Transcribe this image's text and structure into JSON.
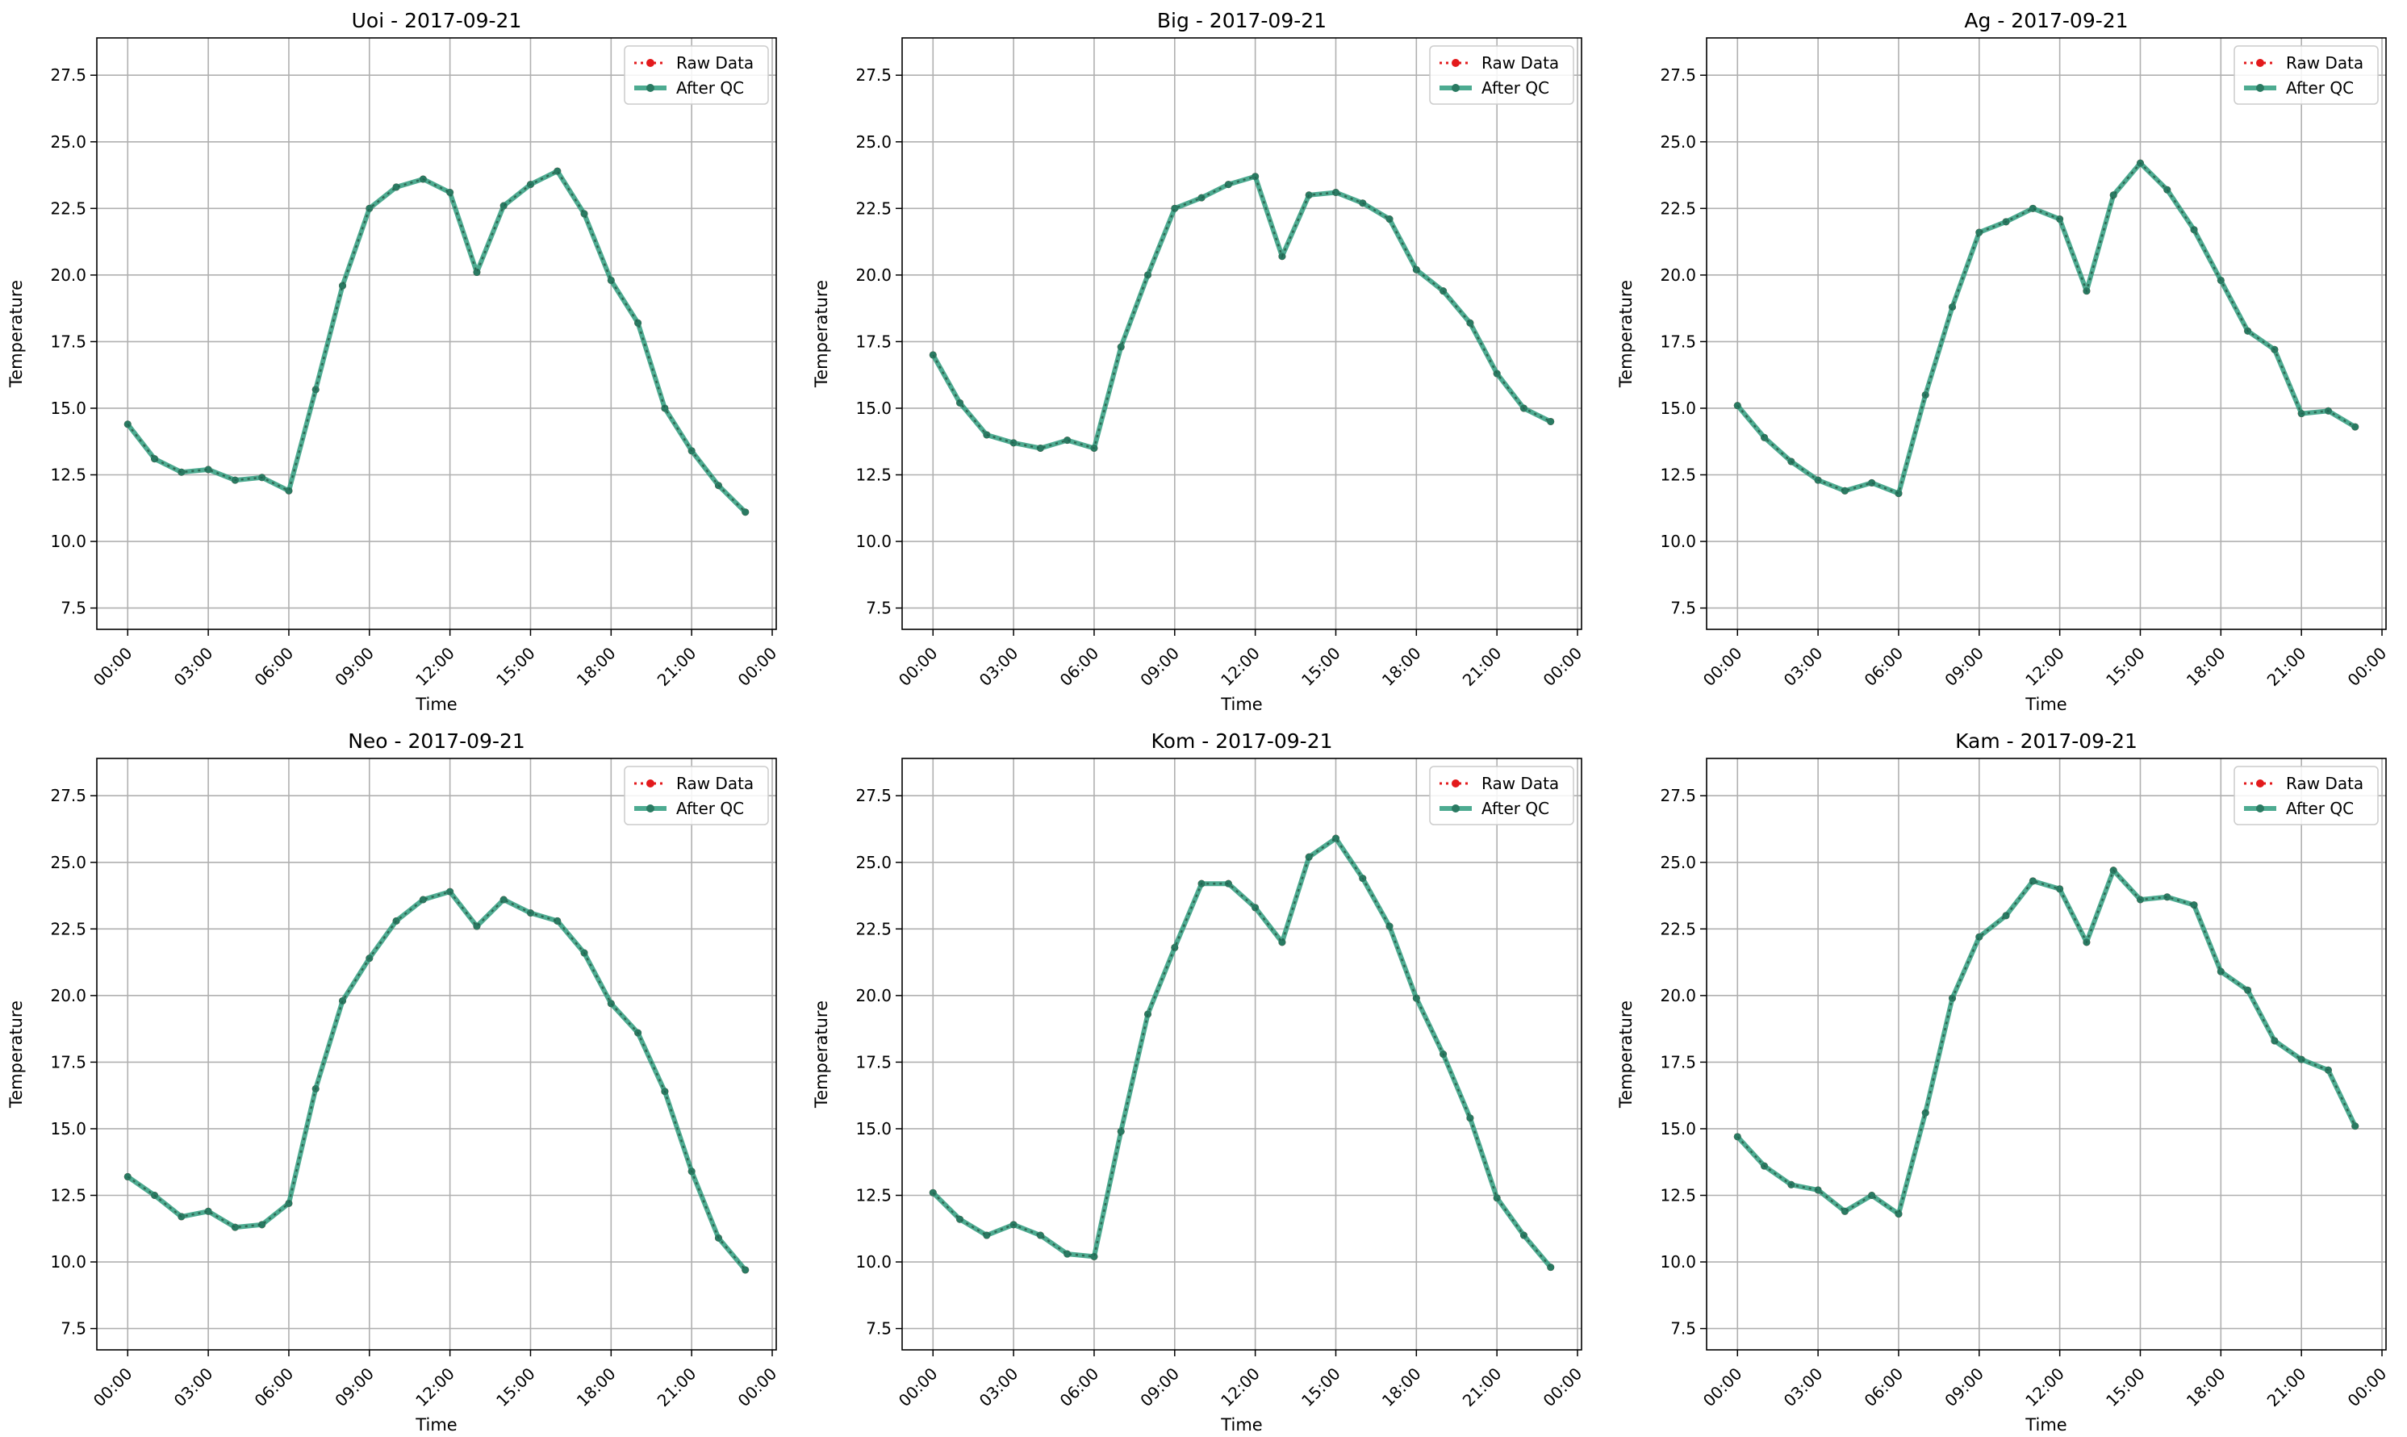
{
  "chart_data": [
    {
      "type": "line",
      "title": "Uoi - 2017-09-21",
      "xlabel": "Time",
      "ylabel": "Temperature",
      "x_ticks": [
        "00:00",
        "03:00",
        "06:00",
        "09:00",
        "12:00",
        "15:00",
        "18:00",
        "21:00",
        "00:00"
      ],
      "y_ticks": [
        "7.5",
        "10.0",
        "12.5",
        "15.0",
        "17.5",
        "20.0",
        "22.5",
        "25.0",
        "27.5"
      ],
      "xlim": [
        -1.15,
        24.15
      ],
      "ylim": [
        6.7,
        28.9
      ],
      "grid": true,
      "legend": "top-right",
      "x_hours": [
        0,
        1,
        2,
        3,
        4,
        5,
        6,
        7,
        8,
        9,
        10,
        11,
        12,
        13,
        14,
        15,
        16,
        17,
        18,
        19,
        20,
        21,
        22,
        23
      ],
      "series": [
        {
          "name": "Raw Data",
          "color": "#e31a1c",
          "style": "dotted-markers",
          "values": [
            14.4,
            13.1,
            12.6,
            12.7,
            12.3,
            12.4,
            11.9,
            15.7,
            19.6,
            22.5,
            23.3,
            23.6,
            23.1,
            20.1,
            22.6,
            23.4,
            23.9,
            22.3,
            19.8,
            18.2,
            15.0,
            13.4,
            12.1,
            11.1
          ]
        },
        {
          "name": "After QC",
          "color": "#2e9c7e",
          "style": "solid-markers",
          "values": [
            14.4,
            13.1,
            12.6,
            12.7,
            12.3,
            12.4,
            11.9,
            15.7,
            19.6,
            22.5,
            23.3,
            23.6,
            23.1,
            20.1,
            22.6,
            23.4,
            23.9,
            22.3,
            19.8,
            18.2,
            15.0,
            13.4,
            12.1,
            11.1
          ]
        }
      ]
    },
    {
      "type": "line",
      "title": "Big - 2017-09-21",
      "xlabel": "Time",
      "ylabel": "Temperature",
      "x_ticks": [
        "00:00",
        "03:00",
        "06:00",
        "09:00",
        "12:00",
        "15:00",
        "18:00",
        "21:00",
        "00:00"
      ],
      "y_ticks": [
        "7.5",
        "10.0",
        "12.5",
        "15.0",
        "17.5",
        "20.0",
        "22.5",
        "25.0",
        "27.5"
      ],
      "xlim": [
        -1.15,
        24.15
      ],
      "ylim": [
        6.7,
        28.9
      ],
      "grid": true,
      "legend": "top-right",
      "x_hours": [
        0,
        1,
        2,
        3,
        4,
        5,
        6,
        7,
        8,
        9,
        10,
        11,
        12,
        13,
        14,
        15,
        16,
        17,
        18,
        19,
        20,
        21,
        22,
        23
      ],
      "series": [
        {
          "name": "Raw Data",
          "color": "#e31a1c",
          "style": "dotted-markers",
          "values": [
            17.0,
            15.2,
            14.0,
            13.7,
            13.5,
            13.8,
            13.5,
            17.3,
            20.0,
            22.5,
            22.9,
            23.4,
            23.7,
            20.7,
            23.0,
            23.1,
            22.7,
            22.1,
            20.2,
            19.4,
            18.2,
            16.3,
            15.0,
            14.5
          ]
        },
        {
          "name": "After QC",
          "color": "#2e9c7e",
          "style": "solid-markers",
          "values": [
            17.0,
            15.2,
            14.0,
            13.7,
            13.5,
            13.8,
            13.5,
            17.3,
            20.0,
            22.5,
            22.9,
            23.4,
            23.7,
            20.7,
            23.0,
            23.1,
            22.7,
            22.1,
            20.2,
            19.4,
            18.2,
            16.3,
            15.0,
            14.5
          ]
        }
      ]
    },
    {
      "type": "line",
      "title": "Ag - 2017-09-21",
      "xlabel": "Time",
      "ylabel": "Temperature",
      "x_ticks": [
        "00:00",
        "03:00",
        "06:00",
        "09:00",
        "12:00",
        "15:00",
        "18:00",
        "21:00",
        "00:00"
      ],
      "y_ticks": [
        "7.5",
        "10.0",
        "12.5",
        "15.0",
        "17.5",
        "20.0",
        "22.5",
        "25.0",
        "27.5"
      ],
      "xlim": [
        -1.15,
        24.15
      ],
      "ylim": [
        6.7,
        28.9
      ],
      "grid": true,
      "legend": "top-right",
      "x_hours": [
        0,
        1,
        2,
        3,
        4,
        5,
        6,
        7,
        8,
        9,
        10,
        11,
        12,
        13,
        14,
        15,
        16,
        17,
        18,
        19,
        20,
        21,
        22,
        23
      ],
      "series": [
        {
          "name": "Raw Data",
          "color": "#e31a1c",
          "style": "dotted-markers",
          "values": [
            15.1,
            13.9,
            13.0,
            12.3,
            11.9,
            12.2,
            11.8,
            15.5,
            18.8,
            21.6,
            22.0,
            22.5,
            22.1,
            19.4,
            23.0,
            24.2,
            23.2,
            21.7,
            19.8,
            17.9,
            17.2,
            14.8,
            14.9,
            14.3
          ]
        },
        {
          "name": "After QC",
          "color": "#2e9c7e",
          "style": "solid-markers",
          "values": [
            15.1,
            13.9,
            13.0,
            12.3,
            11.9,
            12.2,
            11.8,
            15.5,
            18.8,
            21.6,
            22.0,
            22.5,
            22.1,
            19.4,
            23.0,
            24.2,
            23.2,
            21.7,
            19.8,
            17.9,
            17.2,
            14.8,
            14.9,
            14.3
          ]
        }
      ]
    },
    {
      "type": "line",
      "title": "Neo - 2017-09-21",
      "xlabel": "Time",
      "ylabel": "Temperature",
      "x_ticks": [
        "00:00",
        "03:00",
        "06:00",
        "09:00",
        "12:00",
        "15:00",
        "18:00",
        "21:00",
        "00:00"
      ],
      "y_ticks": [
        "7.5",
        "10.0",
        "12.5",
        "15.0",
        "17.5",
        "20.0",
        "22.5",
        "25.0",
        "27.5"
      ],
      "xlim": [
        -1.15,
        24.15
      ],
      "ylim": [
        6.7,
        28.9
      ],
      "grid": true,
      "legend": "top-right",
      "x_hours": [
        0,
        1,
        2,
        3,
        4,
        5,
        6,
        7,
        8,
        9,
        10,
        11,
        12,
        13,
        14,
        15,
        16,
        17,
        18,
        19,
        20,
        21,
        22,
        23
      ],
      "series": [
        {
          "name": "Raw Data",
          "color": "#e31a1c",
          "style": "dotted-markers",
          "values": [
            13.2,
            12.5,
            11.7,
            11.9,
            11.3,
            11.4,
            12.2,
            16.5,
            19.8,
            21.4,
            22.8,
            23.6,
            23.9,
            22.6,
            23.6,
            23.1,
            22.8,
            21.6,
            19.7,
            18.6,
            16.4,
            13.4,
            10.9,
            9.7
          ]
        },
        {
          "name": "After QC",
          "color": "#2e9c7e",
          "style": "solid-markers",
          "values": [
            13.2,
            12.5,
            11.7,
            11.9,
            11.3,
            11.4,
            12.2,
            16.5,
            19.8,
            21.4,
            22.8,
            23.6,
            23.9,
            22.6,
            23.6,
            23.1,
            22.8,
            21.6,
            19.7,
            18.6,
            16.4,
            13.4,
            10.9,
            9.7
          ]
        }
      ]
    },
    {
      "type": "line",
      "title": "Kom - 2017-09-21",
      "xlabel": "Time",
      "ylabel": "Temperature",
      "x_ticks": [
        "00:00",
        "03:00",
        "06:00",
        "09:00",
        "12:00",
        "15:00",
        "18:00",
        "21:00",
        "00:00"
      ],
      "y_ticks": [
        "7.5",
        "10.0",
        "12.5",
        "15.0",
        "17.5",
        "20.0",
        "22.5",
        "25.0",
        "27.5"
      ],
      "xlim": [
        -1.15,
        24.15
      ],
      "ylim": [
        6.7,
        28.9
      ],
      "grid": true,
      "legend": "top-right",
      "x_hours": [
        0,
        1,
        2,
        3,
        4,
        5,
        6,
        7,
        8,
        9,
        10,
        11,
        12,
        13,
        14,
        15,
        16,
        17,
        18,
        19,
        20,
        21,
        22,
        23
      ],
      "series": [
        {
          "name": "Raw Data",
          "color": "#e31a1c",
          "style": "dotted-markers",
          "values": [
            12.6,
            11.6,
            11.0,
            11.4,
            11.0,
            10.3,
            10.2,
            14.9,
            19.3,
            21.8,
            24.2,
            24.2,
            23.3,
            22.0,
            25.2,
            25.9,
            24.4,
            22.6,
            19.9,
            17.8,
            15.4,
            12.4,
            11.0,
            9.8
          ]
        },
        {
          "name": "After QC",
          "color": "#2e9c7e",
          "style": "solid-markers",
          "values": [
            12.6,
            11.6,
            11.0,
            11.4,
            11.0,
            10.3,
            10.2,
            14.9,
            19.3,
            21.8,
            24.2,
            24.2,
            23.3,
            22.0,
            25.2,
            25.9,
            24.4,
            22.6,
            19.9,
            17.8,
            15.4,
            12.4,
            11.0,
            9.8
          ]
        }
      ]
    },
    {
      "type": "line",
      "title": "Kam - 2017-09-21",
      "xlabel": "Time",
      "ylabel": "Temperature",
      "x_ticks": [
        "00:00",
        "03:00",
        "06:00",
        "09:00",
        "12:00",
        "15:00",
        "18:00",
        "21:00",
        "00:00"
      ],
      "y_ticks": [
        "7.5",
        "10.0",
        "12.5",
        "15.0",
        "17.5",
        "20.0",
        "22.5",
        "25.0",
        "27.5"
      ],
      "xlim": [
        -1.15,
        24.15
      ],
      "ylim": [
        6.7,
        28.9
      ],
      "grid": true,
      "legend": "top-right",
      "x_hours": [
        0,
        1,
        2,
        3,
        4,
        5,
        6,
        7,
        8,
        9,
        10,
        11,
        12,
        13,
        14,
        15,
        16,
        17,
        18,
        19,
        20,
        21,
        22,
        23
      ],
      "series": [
        {
          "name": "Raw Data",
          "color": "#e31a1c",
          "style": "dotted-markers",
          "values": [
            14.7,
            13.6,
            12.9,
            12.7,
            11.9,
            12.5,
            11.8,
            15.6,
            19.9,
            22.2,
            23.0,
            24.3,
            24.0,
            22.0,
            24.7,
            23.6,
            23.7,
            23.4,
            20.9,
            20.2,
            18.3,
            17.6,
            17.2,
            15.1
          ]
        },
        {
          "name": "After QC",
          "color": "#2e9c7e",
          "style": "solid-markers",
          "values": [
            14.7,
            13.6,
            12.9,
            12.7,
            11.9,
            12.5,
            11.8,
            15.6,
            19.9,
            22.2,
            23.0,
            24.3,
            24.0,
            22.0,
            24.7,
            23.6,
            23.7,
            23.4,
            20.9,
            20.2,
            18.3,
            17.6,
            17.2,
            15.1
          ]
        }
      ]
    }
  ]
}
